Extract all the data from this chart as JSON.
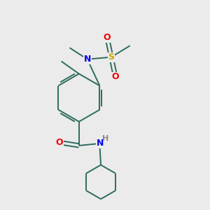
{
  "background_color": "#ebebeb",
  "bond_color": "#2e6b5e",
  "atom_colors": {
    "N": "#0000ee",
    "O": "#ee0000",
    "S": "#ccaa00",
    "H": "#888888"
  },
  "bond_width": 1.4,
  "figsize": [
    3.0,
    3.0
  ],
  "dpi": 100,
  "ring_r": 0.115,
  "cyc_r": 0.082
}
